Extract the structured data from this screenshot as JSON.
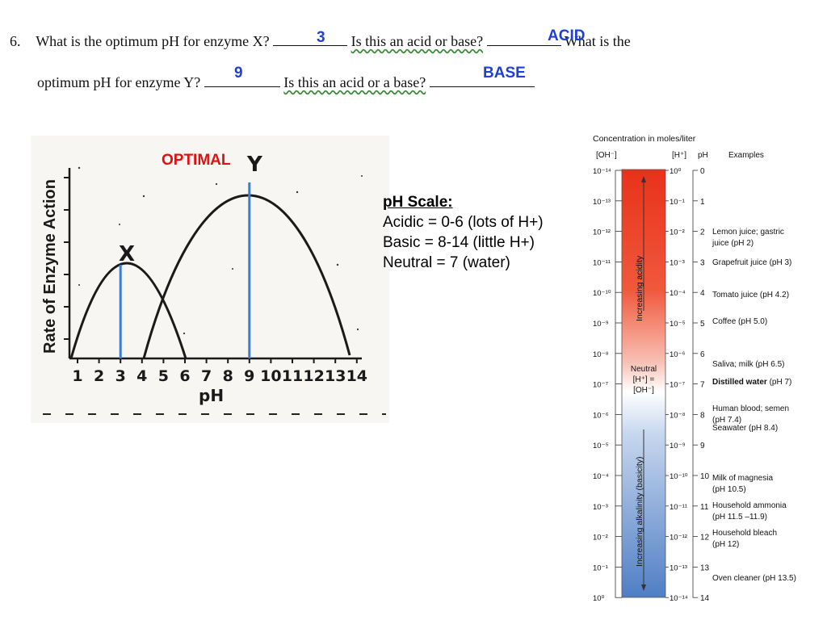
{
  "question": {
    "number": "6.",
    "line1_a": "What is the optimum pH for enzyme X?",
    "line1_b": "Is this an acid or base?",
    "line1_c": "What is the",
    "line2_a": "optimum pH for enzyme Y?",
    "line2_b": "Is this an acid or a base?",
    "answer_x_ph": "3",
    "answer_x_type": "ACID",
    "answer_y_ph": "9",
    "answer_y_type": "BASE"
  },
  "graph": {
    "optimal_label": "OPTIMAL",
    "ylabel": "Rate of Enzyme Action",
    "xlabel": "pH",
    "curve_x_label": "X",
    "curve_y_label": "Y",
    "ticks": [
      "1",
      "2",
      "3",
      "4",
      "5",
      "6",
      "7",
      "8",
      "9",
      "10",
      "11",
      "12",
      "13",
      "14"
    ],
    "optimum_x": 3,
    "optimum_y": 9,
    "colors": {
      "optimum_line": "#3b7fd4",
      "optimal_text": "#e01010",
      "answer_text": "#1f3fd6"
    }
  },
  "ph_note": {
    "heading": "pH Scale:",
    "acidic": "Acidic = 0-6 (lots of H+)",
    "basic": "Basic = 8-14  (little H+)",
    "neutral": "Neutral = 7  (water)"
  },
  "ph_chart": {
    "title": "Concentration in moles/liter",
    "col_oh": "[OH⁻]",
    "col_h": "[H⁺]",
    "col_ph": "pH",
    "col_examples": "Examples",
    "oh_values": [
      "10⁻¹⁴",
      "10⁻¹³",
      "10⁻¹²",
      "10⁻¹¹",
      "10⁻¹⁰",
      "10⁻⁹",
      "10⁻⁸",
      "10⁻⁷",
      "10⁻⁶",
      "10⁻⁵",
      "10⁻⁴",
      "10⁻³",
      "10⁻²",
      "10⁻¹",
      "10⁰"
    ],
    "h_values": [
      "10⁰",
      "10⁻¹",
      "10⁻²",
      "10⁻³",
      "10⁻⁴",
      "10⁻⁵",
      "10⁻⁶",
      "10⁻⁷",
      "10⁻⁸",
      "10⁻⁹",
      "10⁻¹⁰",
      "10⁻¹¹",
      "10⁻¹²",
      "10⁻¹³",
      "10⁻¹⁴"
    ],
    "ph_values": [
      "0",
      "1",
      "2",
      "3",
      "4",
      "5",
      "6",
      "7",
      "8",
      "9",
      "10",
      "11",
      "12",
      "13",
      "14"
    ],
    "acidity_label": "Increasing acidity",
    "alkalinity_label": "Increasing alkalinity (basicity)",
    "neutral_lines": [
      "Neutral",
      "[H⁺] =",
      "[OH⁻]"
    ],
    "examples": [
      {
        "lines": [
          "Lemon juice; gastric",
          "juice (pH 2)"
        ],
        "bold": false
      },
      {
        "lines": [
          "Grapefruit juice (pH 3)"
        ],
        "bold": false
      },
      {
        "lines": [
          "Tomato juice (pH 4.2)"
        ],
        "bold": false
      },
      {
        "lines": [
          "Coffee (pH 5.0)"
        ],
        "bold": false
      },
      {
        "lines": [
          "Saliva; milk (pH 6.5)"
        ],
        "bold": false
      },
      {
        "lines": [
          "Distilled water",
          " (pH 7)"
        ],
        "bold": true
      },
      {
        "lines": [
          "Human blood; semen",
          "(pH 7.4)"
        ],
        "bold": false
      },
      {
        "lines": [
          "Seawater (pH 8.4)"
        ],
        "bold": false
      },
      {
        "lines": [
          "Milk of magnesia",
          "(pH 10.5)"
        ],
        "bold": false
      },
      {
        "lines": [
          "Household ammonia",
          "(pH 11.5 –11.9)"
        ],
        "bold": false
      },
      {
        "lines": [
          "Household bleach",
          "(pH 12)"
        ],
        "bold": false
      },
      {
        "lines": [
          "Oven cleaner (pH 13.5)"
        ],
        "bold": false
      }
    ]
  }
}
